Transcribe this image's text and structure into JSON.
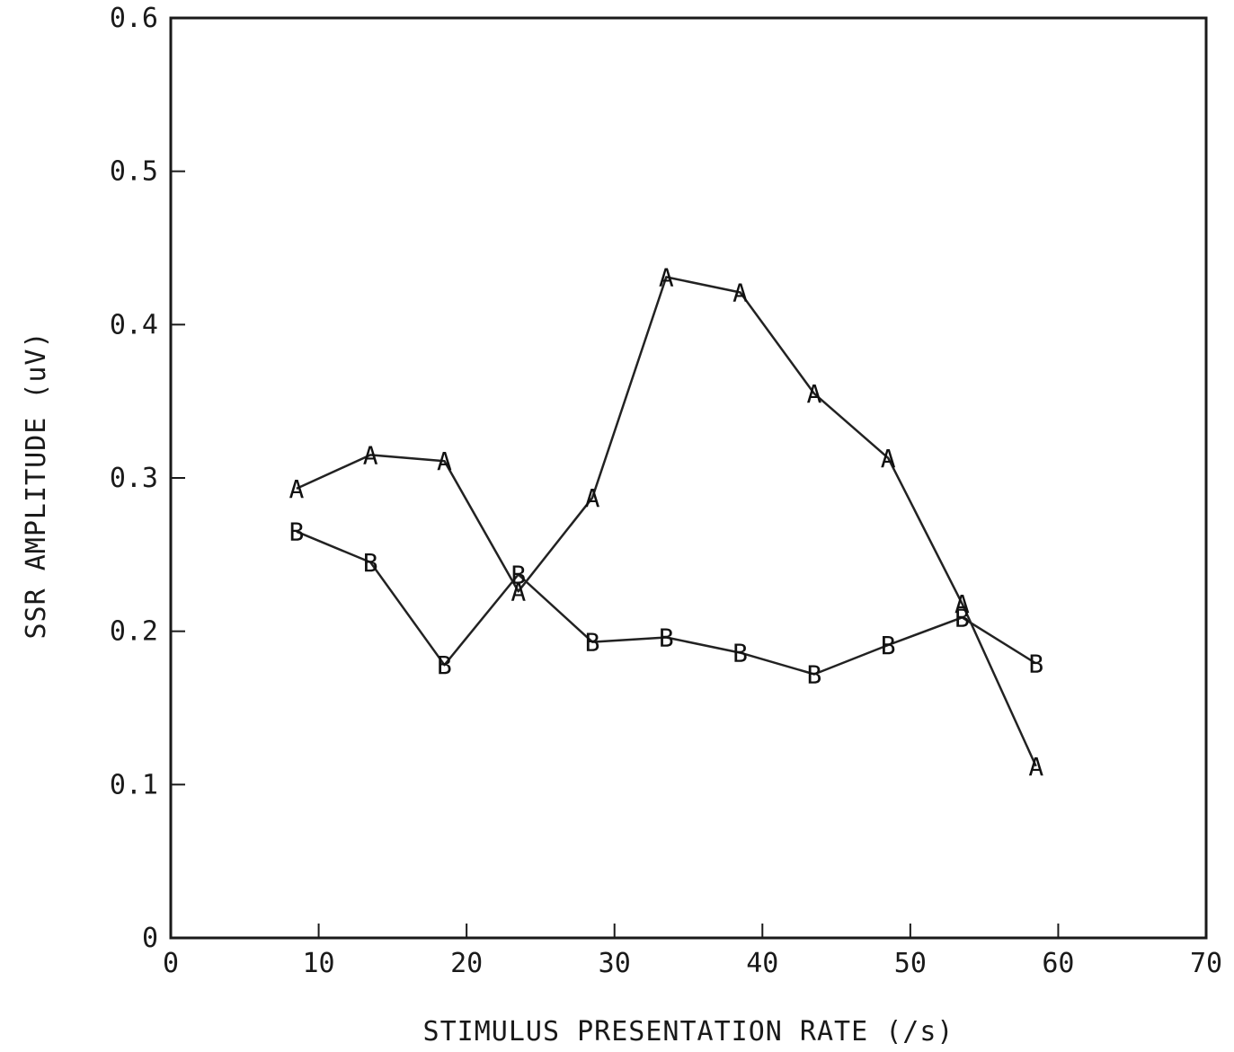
{
  "chart_data": {
    "type": "line",
    "title": "",
    "xlabel": "STIMULUS PRESENTATION RATE (/s)",
    "ylabel": "SSR AMPLITUDE (uV)",
    "xlim": [
      0,
      70
    ],
    "ylim": [
      0,
      0.6
    ],
    "x_ticks": [
      0,
      10,
      20,
      30,
      40,
      50,
      60,
      70
    ],
    "x_tick_labels": [
      "0",
      "10",
      "20",
      "30",
      "40",
      "50",
      "60",
      "70"
    ],
    "y_ticks": [
      0,
      0.1,
      0.2,
      0.3,
      0.4,
      0.5,
      0.6
    ],
    "y_tick_labels": [
      "0",
      "0.1",
      "0.2",
      "0.3",
      "0.4",
      "0.5",
      "0.6"
    ],
    "grid": false,
    "legend": "none",
    "series": [
      {
        "name": "A",
        "marker": "A",
        "x": [
          8.5,
          13.5,
          18.5,
          23.5,
          28.5,
          33.5,
          38.5,
          43.5,
          48.5,
          53.5,
          58.5
        ],
        "y": [
          0.293,
          0.315,
          0.311,
          0.226,
          0.287,
          0.431,
          0.421,
          0.355,
          0.313,
          0.218,
          0.112
        ]
      },
      {
        "name": "B",
        "marker": "B",
        "x": [
          8.5,
          13.5,
          18.5,
          23.5,
          28.5,
          33.5,
          38.5,
          43.5,
          48.5,
          53.5,
          58.5
        ],
        "y": [
          0.265,
          0.245,
          0.178,
          0.237,
          0.193,
          0.196,
          0.186,
          0.172,
          0.191,
          0.209,
          0.179
        ]
      }
    ]
  },
  "colors": {
    "axis": "#1a1a1a",
    "line": "#222222",
    "background": "#ffffff"
  }
}
